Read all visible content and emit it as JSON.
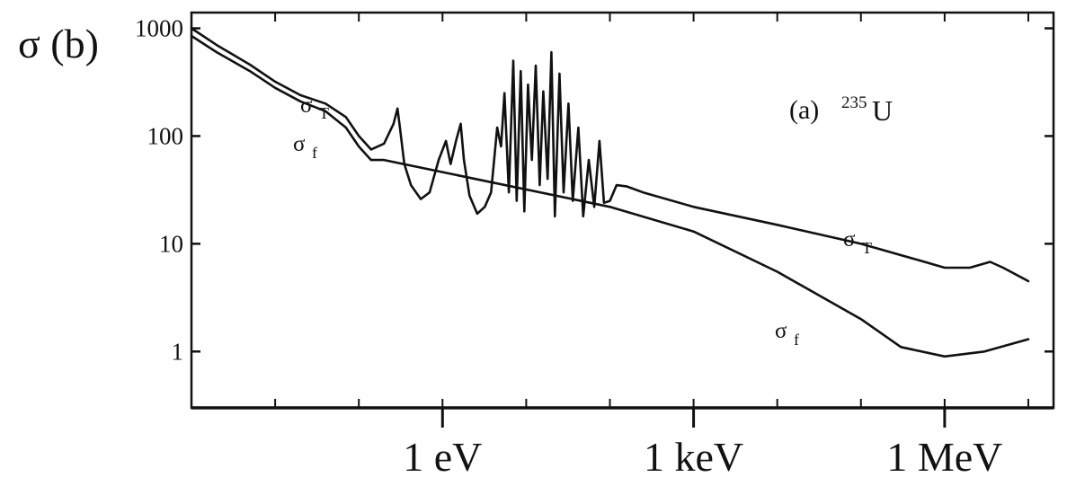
{
  "chart_data": {
    "type": "line",
    "title": "",
    "ylabel": "σ (b)",
    "xlabel": "",
    "panel_label": "(a)",
    "isotope": {
      "mass_number": "235",
      "symbol": "U"
    },
    "x_axis": {
      "scale": "log",
      "unit": "eV",
      "range": [
        0.001,
        20000000
      ],
      "tick_labels": [
        {
          "value": 1,
          "label": "1 eV"
        },
        {
          "value": 1000,
          "label": "1 keV"
        },
        {
          "value": 1000000,
          "label": "1 MeV"
        }
      ]
    },
    "y_axis": {
      "scale": "log",
      "range": [
        0.3,
        1400
      ],
      "tick_labels": [
        {
          "value": 1,
          "label": "1"
        },
        {
          "value": 10,
          "label": "10"
        },
        {
          "value": 100,
          "label": "100"
        },
        {
          "value": 1000,
          "label": "1000"
        }
      ]
    },
    "grid": false,
    "series": [
      {
        "name": "σT",
        "label_main": "σ",
        "label_sub": "T",
        "color": "#111111",
        "points": [
          [
            0.001,
            1000
          ],
          [
            0.002,
            700
          ],
          [
            0.005,
            460
          ],
          [
            0.01,
            320
          ],
          [
            0.02,
            240
          ],
          [
            0.04,
            200
          ],
          [
            0.07,
            150
          ],
          [
            0.1,
            100
          ],
          [
            0.14,
            75
          ],
          [
            0.2,
            85
          ],
          [
            0.26,
            130
          ],
          [
            0.29,
            180
          ],
          [
            0.31,
            120
          ],
          [
            0.35,
            55
          ],
          [
            0.42,
            35
          ],
          [
            0.55,
            26
          ],
          [
            0.7,
            30
          ],
          [
            0.9,
            60
          ],
          [
            1.1,
            90
          ],
          [
            1.25,
            55
          ],
          [
            1.45,
            90
          ],
          [
            1.65,
            130
          ],
          [
            1.8,
            60
          ],
          [
            2.1,
            28
          ],
          [
            2.6,
            19
          ],
          [
            3.2,
            22
          ],
          [
            3.8,
            30
          ],
          [
            4.5,
            120
          ],
          [
            5,
            80
          ],
          [
            5.5,
            250
          ],
          [
            6.2,
            30
          ],
          [
            7,
            500
          ],
          [
            7.7,
            25
          ],
          [
            8.6,
            400
          ],
          [
            9.5,
            20
          ],
          [
            10.5,
            300
          ],
          [
            11.7,
            60
          ],
          [
            13,
            450
          ],
          [
            14.5,
            35
          ],
          [
            16,
            260
          ],
          [
            18,
            40
          ],
          [
            20,
            600
          ],
          [
            22,
            18
          ],
          [
            25,
            380
          ],
          [
            28,
            30
          ],
          [
            32,
            200
          ],
          [
            36,
            25
          ],
          [
            42,
            120
          ],
          [
            48,
            18
          ],
          [
            56,
            60
          ],
          [
            65,
            22
          ],
          [
            75,
            90
          ],
          [
            85,
            24
          ],
          [
            100,
            25
          ],
          [
            120,
            35
          ],
          [
            160,
            34
          ],
          [
            250,
            30
          ],
          [
            1000,
            22
          ],
          [
            10000,
            15
          ],
          [
            100000,
            10
          ],
          [
            500000,
            7
          ],
          [
            1000000,
            6
          ],
          [
            2000000,
            6
          ],
          [
            3500000,
            6.8
          ],
          [
            5000000,
            6
          ],
          [
            10000000,
            4.5
          ]
        ]
      },
      {
        "name": "σf",
        "label_main": "σ",
        "label_sub": "f",
        "color": "#111111",
        "points": [
          [
            0.001,
            850
          ],
          [
            0.002,
            600
          ],
          [
            0.005,
            400
          ],
          [
            0.01,
            280
          ],
          [
            0.02,
            210
          ],
          [
            0.04,
            170
          ],
          [
            0.07,
            120
          ],
          [
            0.1,
            80
          ],
          [
            0.14,
            60
          ],
          [
            0.2,
            60
          ],
          [
            100,
            22
          ],
          [
            1000,
            13
          ],
          [
            10000,
            5.5
          ],
          [
            100000,
            2
          ],
          [
            300000,
            1.1
          ],
          [
            1000000,
            0.9
          ],
          [
            3000000,
            1
          ],
          [
            10000000,
            1.3
          ]
        ]
      }
    ]
  }
}
